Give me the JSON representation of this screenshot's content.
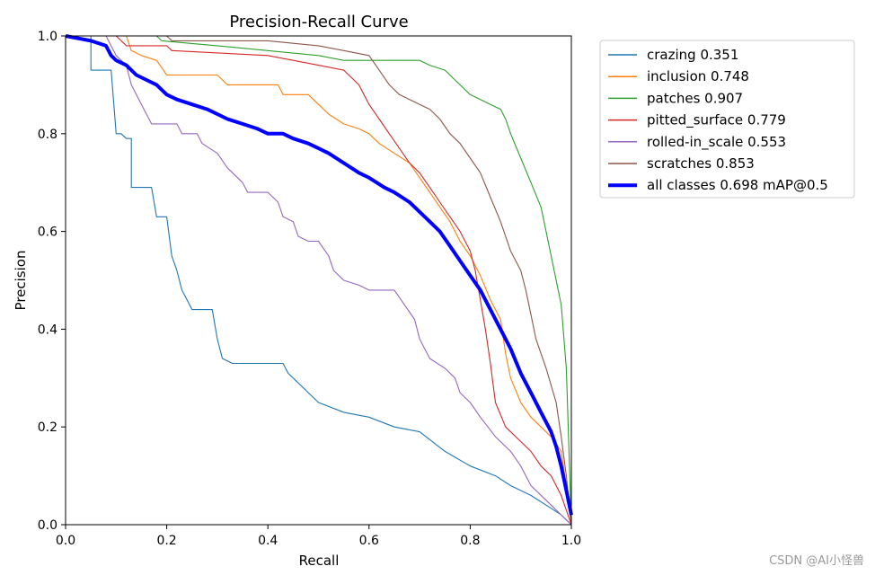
{
  "chart_data": {
    "type": "line",
    "title": "Precision-Recall Curve",
    "xlabel": "Recall",
    "ylabel": "Precision",
    "xlim": [
      0,
      1
    ],
    "ylim": [
      0,
      1
    ],
    "xticks": [
      "0.0",
      "0.2",
      "0.4",
      "0.6",
      "0.8",
      "1.0"
    ],
    "yticks": [
      "0.0",
      "0.2",
      "0.4",
      "0.6",
      "0.8",
      "1.0"
    ],
    "grid": false,
    "legend_position": "outside-right-top",
    "series": [
      {
        "name": "crazing 0.351",
        "color": "#1f77b4",
        "width": "thin",
        "points": [
          [
            0,
            1
          ],
          [
            0.05,
            1
          ],
          [
            0.05,
            0.93
          ],
          [
            0.09,
            0.93
          ],
          [
            0.1,
            0.8
          ],
          [
            0.11,
            0.8
          ],
          [
            0.12,
            0.79
          ],
          [
            0.13,
            0.79
          ],
          [
            0.13,
            0.69
          ],
          [
            0.17,
            0.69
          ],
          [
            0.18,
            0.63
          ],
          [
            0.2,
            0.63
          ],
          [
            0.21,
            0.55
          ],
          [
            0.22,
            0.52
          ],
          [
            0.23,
            0.48
          ],
          [
            0.25,
            0.44
          ],
          [
            0.29,
            0.44
          ],
          [
            0.3,
            0.38
          ],
          [
            0.31,
            0.34
          ],
          [
            0.33,
            0.33
          ],
          [
            0.43,
            0.33
          ],
          [
            0.44,
            0.31
          ],
          [
            0.46,
            0.29
          ],
          [
            0.48,
            0.27
          ],
          [
            0.5,
            0.25
          ],
          [
            0.55,
            0.23
          ],
          [
            0.6,
            0.22
          ],
          [
            0.65,
            0.2
          ],
          [
            0.7,
            0.19
          ],
          [
            0.75,
            0.15
          ],
          [
            0.8,
            0.12
          ],
          [
            0.85,
            0.1
          ],
          [
            0.88,
            0.08
          ],
          [
            0.92,
            0.06
          ],
          [
            0.95,
            0.04
          ],
          [
            0.98,
            0.02
          ],
          [
            1.0,
            0
          ]
        ]
      },
      {
        "name": "inclusion 0.748",
        "color": "#ff7f0e",
        "width": "thin",
        "points": [
          [
            0,
            1
          ],
          [
            0.12,
            1
          ],
          [
            0.13,
            0.97
          ],
          [
            0.15,
            0.96
          ],
          [
            0.18,
            0.95
          ],
          [
            0.2,
            0.92
          ],
          [
            0.3,
            0.92
          ],
          [
            0.32,
            0.9
          ],
          [
            0.42,
            0.9
          ],
          [
            0.43,
            0.88
          ],
          [
            0.48,
            0.88
          ],
          [
            0.5,
            0.86
          ],
          [
            0.52,
            0.84
          ],
          [
            0.55,
            0.82
          ],
          [
            0.58,
            0.81
          ],
          [
            0.6,
            0.8
          ],
          [
            0.62,
            0.78
          ],
          [
            0.65,
            0.76
          ],
          [
            0.68,
            0.74
          ],
          [
            0.7,
            0.71
          ],
          [
            0.72,
            0.68
          ],
          [
            0.74,
            0.65
          ],
          [
            0.76,
            0.62
          ],
          [
            0.78,
            0.58
          ],
          [
            0.8,
            0.55
          ],
          [
            0.82,
            0.51
          ],
          [
            0.84,
            0.46
          ],
          [
            0.86,
            0.42
          ],
          [
            0.87,
            0.35
          ],
          [
            0.88,
            0.3
          ],
          [
            0.9,
            0.25
          ],
          [
            0.92,
            0.22
          ],
          [
            0.94,
            0.2
          ],
          [
            0.96,
            0.18
          ],
          [
            0.98,
            0.15
          ],
          [
            0.99,
            0.08
          ],
          [
            1.0,
            0
          ]
        ]
      },
      {
        "name": "patches 0.907",
        "color": "#2ca02c",
        "width": "thin",
        "points": [
          [
            0,
            1
          ],
          [
            0.18,
            1
          ],
          [
            0.19,
            0.99
          ],
          [
            0.3,
            0.98
          ],
          [
            0.5,
            0.96
          ],
          [
            0.55,
            0.95
          ],
          [
            0.7,
            0.95
          ],
          [
            0.72,
            0.94
          ],
          [
            0.75,
            0.93
          ],
          [
            0.77,
            0.91
          ],
          [
            0.78,
            0.9
          ],
          [
            0.8,
            0.88
          ],
          [
            0.82,
            0.87
          ],
          [
            0.84,
            0.86
          ],
          [
            0.86,
            0.85
          ],
          [
            0.87,
            0.83
          ],
          [
            0.88,
            0.8
          ],
          [
            0.9,
            0.75
          ],
          [
            0.92,
            0.7
          ],
          [
            0.94,
            0.65
          ],
          [
            0.95,
            0.6
          ],
          [
            0.96,
            0.55
          ],
          [
            0.97,
            0.5
          ],
          [
            0.98,
            0.45
          ],
          [
            0.99,
            0.32
          ],
          [
            1.0,
            0
          ]
        ]
      },
      {
        "name": "pitted_surface 0.779",
        "color": "#d62728",
        "width": "thin",
        "points": [
          [
            0,
            1
          ],
          [
            0.1,
            1
          ],
          [
            0.12,
            0.98
          ],
          [
            0.2,
            0.98
          ],
          [
            0.21,
            0.97
          ],
          [
            0.4,
            0.96
          ],
          [
            0.45,
            0.95
          ],
          [
            0.5,
            0.94
          ],
          [
            0.55,
            0.93
          ],
          [
            0.58,
            0.9
          ],
          [
            0.6,
            0.86
          ],
          [
            0.62,
            0.83
          ],
          [
            0.64,
            0.8
          ],
          [
            0.66,
            0.77
          ],
          [
            0.68,
            0.74
          ],
          [
            0.7,
            0.72
          ],
          [
            0.72,
            0.69
          ],
          [
            0.74,
            0.66
          ],
          [
            0.76,
            0.63
          ],
          [
            0.78,
            0.6
          ],
          [
            0.8,
            0.56
          ],
          [
            0.81,
            0.52
          ],
          [
            0.82,
            0.46
          ],
          [
            0.83,
            0.4
          ],
          [
            0.84,
            0.33
          ],
          [
            0.85,
            0.25
          ],
          [
            0.87,
            0.2
          ],
          [
            0.9,
            0.17
          ],
          [
            0.92,
            0.15
          ],
          [
            0.94,
            0.12
          ],
          [
            0.96,
            0.1
          ],
          [
            0.98,
            0.06
          ],
          [
            1.0,
            0
          ]
        ]
      },
      {
        "name": "rolled-in_scale 0.553",
        "color": "#9467bd",
        "width": "thin",
        "points": [
          [
            0,
            1
          ],
          [
            0.08,
            1
          ],
          [
            0.1,
            0.96
          ],
          [
            0.12,
            0.94
          ],
          [
            0.13,
            0.9
          ],
          [
            0.15,
            0.86
          ],
          [
            0.17,
            0.82
          ],
          [
            0.22,
            0.82
          ],
          [
            0.23,
            0.8
          ],
          [
            0.26,
            0.8
          ],
          [
            0.27,
            0.78
          ],
          [
            0.3,
            0.76
          ],
          [
            0.32,
            0.73
          ],
          [
            0.35,
            0.7
          ],
          [
            0.36,
            0.68
          ],
          [
            0.4,
            0.68
          ],
          [
            0.42,
            0.66
          ],
          [
            0.43,
            0.63
          ],
          [
            0.45,
            0.62
          ],
          [
            0.46,
            0.59
          ],
          [
            0.48,
            0.58
          ],
          [
            0.5,
            0.58
          ],
          [
            0.52,
            0.55
          ],
          [
            0.53,
            0.52
          ],
          [
            0.55,
            0.5
          ],
          [
            0.58,
            0.49
          ],
          [
            0.6,
            0.48
          ],
          [
            0.65,
            0.48
          ],
          [
            0.67,
            0.45
          ],
          [
            0.69,
            0.42
          ],
          [
            0.7,
            0.38
          ],
          [
            0.72,
            0.34
          ],
          [
            0.75,
            0.32
          ],
          [
            0.77,
            0.3
          ],
          [
            0.78,
            0.27
          ],
          [
            0.8,
            0.25
          ],
          [
            0.82,
            0.22
          ],
          [
            0.85,
            0.18
          ],
          [
            0.88,
            0.15
          ],
          [
            0.9,
            0.12
          ],
          [
            0.92,
            0.08
          ],
          [
            0.95,
            0.05
          ],
          [
            0.98,
            0.02
          ],
          [
            1.0,
            0
          ]
        ]
      },
      {
        "name": "scratches 0.853",
        "color": "#8c564b",
        "width": "thin",
        "points": [
          [
            0,
            1
          ],
          [
            0.2,
            1
          ],
          [
            0.21,
            0.99
          ],
          [
            0.4,
            0.99
          ],
          [
            0.5,
            0.98
          ],
          [
            0.55,
            0.97
          ],
          [
            0.6,
            0.96
          ],
          [
            0.62,
            0.93
          ],
          [
            0.64,
            0.9
          ],
          [
            0.66,
            0.88
          ],
          [
            0.68,
            0.87
          ],
          [
            0.7,
            0.86
          ],
          [
            0.72,
            0.85
          ],
          [
            0.74,
            0.83
          ],
          [
            0.76,
            0.8
          ],
          [
            0.78,
            0.78
          ],
          [
            0.8,
            0.75
          ],
          [
            0.82,
            0.72
          ],
          [
            0.84,
            0.67
          ],
          [
            0.86,
            0.62
          ],
          [
            0.88,
            0.56
          ],
          [
            0.9,
            0.52
          ],
          [
            0.91,
            0.48
          ],
          [
            0.92,
            0.43
          ],
          [
            0.93,
            0.38
          ],
          [
            0.95,
            0.32
          ],
          [
            0.97,
            0.25
          ],
          [
            0.98,
            0.18
          ],
          [
            0.99,
            0.1
          ],
          [
            1.0,
            0
          ]
        ]
      },
      {
        "name": "all classes 0.698 mAP@0.5",
        "color": "#0000ff",
        "width": "thick",
        "points": [
          [
            0,
            1
          ],
          [
            0.05,
            0.99
          ],
          [
            0.08,
            0.98
          ],
          [
            0.09,
            0.96
          ],
          [
            0.1,
            0.95
          ],
          [
            0.12,
            0.94
          ],
          [
            0.14,
            0.92
          ],
          [
            0.16,
            0.91
          ],
          [
            0.18,
            0.9
          ],
          [
            0.2,
            0.88
          ],
          [
            0.22,
            0.87
          ],
          [
            0.25,
            0.86
          ],
          [
            0.28,
            0.85
          ],
          [
            0.3,
            0.84
          ],
          [
            0.32,
            0.83
          ],
          [
            0.35,
            0.82
          ],
          [
            0.38,
            0.81
          ],
          [
            0.4,
            0.8
          ],
          [
            0.43,
            0.8
          ],
          [
            0.45,
            0.79
          ],
          [
            0.48,
            0.78
          ],
          [
            0.5,
            0.77
          ],
          [
            0.52,
            0.76
          ],
          [
            0.55,
            0.74
          ],
          [
            0.58,
            0.72
          ],
          [
            0.6,
            0.71
          ],
          [
            0.63,
            0.69
          ],
          [
            0.65,
            0.68
          ],
          [
            0.68,
            0.66
          ],
          [
            0.7,
            0.64
          ],
          [
            0.72,
            0.62
          ],
          [
            0.74,
            0.6
          ],
          [
            0.76,
            0.57
          ],
          [
            0.78,
            0.54
          ],
          [
            0.8,
            0.51
          ],
          [
            0.82,
            0.48
          ],
          [
            0.84,
            0.44
          ],
          [
            0.86,
            0.4
          ],
          [
            0.88,
            0.36
          ],
          [
            0.9,
            0.31
          ],
          [
            0.92,
            0.27
          ],
          [
            0.94,
            0.23
          ],
          [
            0.96,
            0.19
          ],
          [
            0.97,
            0.16
          ],
          [
            0.98,
            0.12
          ],
          [
            0.99,
            0.07
          ],
          [
            1.0,
            0.02
          ]
        ]
      }
    ]
  },
  "watermark": "CSDN @AI小怪兽"
}
